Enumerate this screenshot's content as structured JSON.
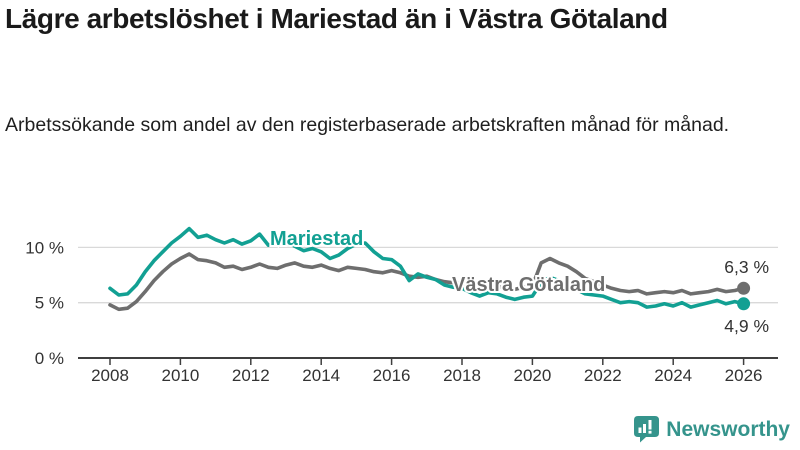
{
  "header": {
    "title": "Lägre arbetslöshet i Mariestad än i Västra Götaland",
    "subtitle": "Arbetssökande som andel av den registerbaserade arbetskraften månad för månad."
  },
  "chart_data": {
    "type": "line",
    "title": "Lägre arbetslöshet i Mariestad än i Västra Götaland",
    "subtitle": "Arbetssökande som andel av den registerbaserade arbetskraften månad för månad.",
    "grid": true,
    "legend_position": "inline-labels-on-lines",
    "x_axis": {
      "unit": "year",
      "start_year": 2008,
      "step_years": 0.25,
      "range": [
        2008,
        2026.1
      ],
      "ticks": [
        2008,
        2010,
        2012,
        2014,
        2016,
        2018,
        2020,
        2022,
        2024,
        2026
      ]
    },
    "y_axis": {
      "unit": "%",
      "range": [
        0,
        12.5
      ],
      "ticks": [
        0,
        5,
        10
      ],
      "tick_labels": [
        "0 %",
        "5 %",
        "10 %"
      ]
    },
    "series": [
      {
        "name": "Mariestad",
        "color": "#12a093",
        "end_label": "4,9 %",
        "end_value": 4.9,
        "values": [
          6.3,
          5.7,
          5.8,
          6.6,
          7.8,
          8.8,
          9.6,
          10.4,
          11.0,
          11.7,
          10.9,
          11.1,
          10.7,
          10.4,
          10.7,
          10.3,
          10.6,
          11.2,
          10.2,
          10.4,
          10.5,
          10.1,
          9.7,
          9.9,
          9.6,
          9.0,
          9.3,
          9.9,
          10.3,
          10.4,
          9.6,
          9.0,
          8.9,
          8.3,
          7.0,
          7.6,
          7.3,
          7.1,
          6.6,
          6.4,
          6.3,
          5.9,
          5.6,
          5.9,
          5.8,
          5.5,
          5.3,
          5.5,
          5.6,
          6.8,
          7.3,
          7.0,
          6.7,
          6.2,
          5.8,
          5.7,
          5.6,
          5.3,
          5.0,
          5.1,
          5.0,
          4.6,
          4.7,
          4.9,
          4.7,
          5.0,
          4.6,
          4.8,
          5.0,
          5.2,
          4.9,
          5.1,
          4.9
        ]
      },
      {
        "name": "Västra Götaland",
        "color": "#6e6e6e",
        "end_label": "6,3 %",
        "end_value": 6.3,
        "values": [
          4.8,
          4.4,
          4.5,
          5.1,
          6.0,
          7.0,
          7.8,
          8.5,
          9.0,
          9.4,
          8.9,
          8.8,
          8.6,
          8.2,
          8.3,
          8.0,
          8.2,
          8.5,
          8.2,
          8.1,
          8.4,
          8.6,
          8.3,
          8.2,
          8.4,
          8.1,
          7.9,
          8.2,
          8.1,
          8.0,
          7.8,
          7.7,
          7.9,
          7.7,
          7.4,
          7.3,
          7.4,
          7.1,
          6.9,
          6.8,
          6.8,
          6.5,
          6.3,
          6.4,
          6.5,
          6.3,
          6.2,
          6.4,
          6.5,
          8.6,
          9.0,
          8.6,
          8.3,
          7.8,
          7.2,
          6.9,
          6.6,
          6.3,
          6.1,
          6.0,
          6.1,
          5.8,
          5.9,
          6.0,
          5.9,
          6.1,
          5.8,
          5.9,
          6.0,
          6.2,
          6.0,
          6.1,
          6.3
        ]
      }
    ]
  },
  "footer": {
    "brand": "Newsworthy",
    "brand_color": "#35948c",
    "logo_icon": "speech-bubble-bar-chart-icon"
  }
}
